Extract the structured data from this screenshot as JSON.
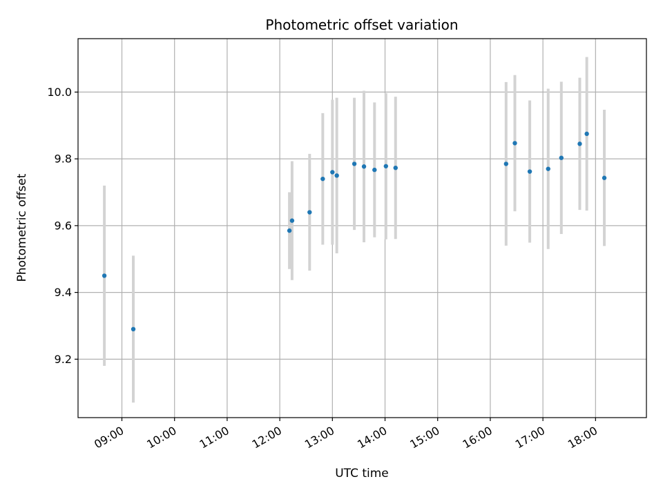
{
  "chart_data": {
    "type": "scatter",
    "title": "Photometric offset variation",
    "xlabel": "UTC time",
    "ylabel": "Photometric offset",
    "grid": true,
    "xlim": [
      "08:10",
      "18:58"
    ],
    "ylim": [
      9.025,
      10.16
    ],
    "x_ticks": [
      "09:00",
      "10:00",
      "11:00",
      "12:00",
      "13:00",
      "14:00",
      "15:00",
      "16:00",
      "17:00",
      "18:00"
    ],
    "y_ticks": [
      9.2,
      9.4,
      9.6,
      9.8,
      10.0
    ],
    "y_tick_labels": [
      "9.2",
      "9.4",
      "9.6",
      "9.8",
      "10.0"
    ],
    "colors": {
      "point": "#1f77b4",
      "errorbar": "#d3d3d3"
    },
    "points": [
      {
        "x": "08:40",
        "y": 9.45,
        "err": 0.27
      },
      {
        "x": "09:13",
        "y": 9.29,
        "err": 0.22
      },
      {
        "x": "12:11",
        "y": 9.585,
        "err": 0.115
      },
      {
        "x": "12:14",
        "y": 9.615,
        "err": 0.178
      },
      {
        "x": "12:34",
        "y": 9.64,
        "err": 0.175
      },
      {
        "x": "12:49",
        "y": 9.74,
        "err": 0.197
      },
      {
        "x": "13:00",
        "y": 9.76,
        "err": 0.217
      },
      {
        "x": "13:05",
        "y": 9.75,
        "err": 0.233
      },
      {
        "x": "13:25",
        "y": 9.785,
        "err": 0.198
      },
      {
        "x": "13:36",
        "y": 9.777,
        "err": 0.227
      },
      {
        "x": "13:48",
        "y": 9.767,
        "err": 0.202
      },
      {
        "x": "14:01",
        "y": 9.778,
        "err": 0.219
      },
      {
        "x": "14:12",
        "y": 9.773,
        "err": 0.213
      },
      {
        "x": "16:18",
        "y": 9.785,
        "err": 0.245
      },
      {
        "x": "16:28",
        "y": 9.847,
        "err": 0.204
      },
      {
        "x": "16:45",
        "y": 9.762,
        "err": 0.213
      },
      {
        "x": "17:06",
        "y": 9.77,
        "err": 0.24
      },
      {
        "x": "17:21",
        "y": 9.803,
        "err": 0.228
      },
      {
        "x": "17:42",
        "y": 9.845,
        "err": 0.198
      },
      {
        "x": "17:50",
        "y": 9.875,
        "err": 0.23
      },
      {
        "x": "18:10",
        "y": 9.743,
        "err": 0.204
      }
    ]
  }
}
